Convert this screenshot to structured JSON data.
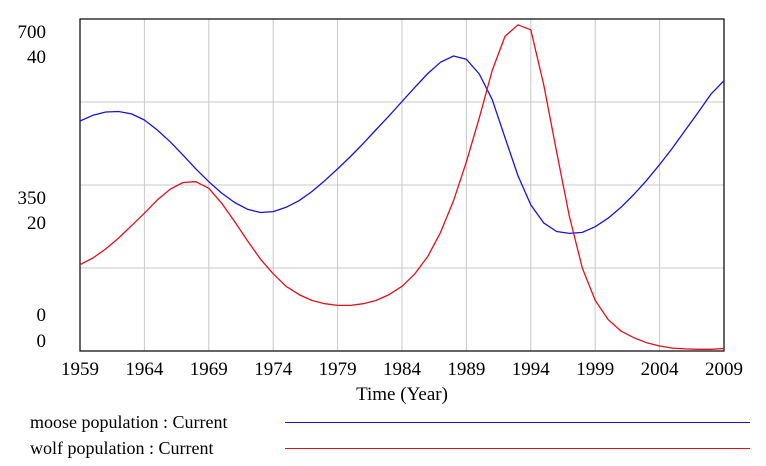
{
  "chart_data": {
    "type": "line",
    "xlabel": "Time (Year)",
    "xlim": [
      1959,
      2009
    ],
    "xticks": [
      "1959",
      "1964",
      "1969",
      "1974",
      "1979",
      "1984",
      "1989",
      "1994",
      "1999",
      "2004",
      "2009"
    ],
    "grid": true,
    "left_axis_outer_ticks": [
      "700",
      "350",
      "0"
    ],
    "left_axis_inner_ticks": [
      "40",
      "20",
      "0"
    ],
    "legend_position": "bottom",
    "series": [
      {
        "name": "moose population : Current",
        "color": "#1a12d6",
        "axis_range": [
          0,
          700
        ],
        "x": [
          1959,
          1960,
          1961,
          1962,
          1963,
          1964,
          1965,
          1966,
          1967,
          1968,
          1969,
          1970,
          1971,
          1972,
          1973,
          1974,
          1975,
          1976,
          1977,
          1978,
          1979,
          1980,
          1981,
          1982,
          1983,
          1984,
          1985,
          1986,
          1987,
          1988,
          1989,
          1990,
          1991,
          1992,
          1993,
          1994,
          1995,
          1996,
          1997,
          1998,
          1999,
          2000,
          2001,
          2002,
          2003,
          2004,
          2005,
          2006,
          2007,
          2008,
          2009
        ],
        "values": [
          485,
          497,
          504,
          505,
          500,
          487,
          466,
          441,
          413,
          384,
          357,
          333,
          313,
          299,
          292,
          294,
          303,
          317,
          336,
          359,
          384,
          410,
          438,
          467,
          496,
          526,
          556,
          585,
          609,
          622,
          615,
          584,
          530,
          450,
          370,
          308,
          270,
          252,
          248,
          250,
          262,
          280,
          303,
          330,
          360,
          393,
          428,
          466,
          503,
          542,
          570
        ]
      },
      {
        "name": "wolf population : Current",
        "color": "#e0101c",
        "axis_range": [
          0,
          40
        ],
        "x": [
          1959,
          1960,
          1961,
          1962,
          1963,
          1964,
          1965,
          1966,
          1967,
          1968,
          1969,
          1970,
          1971,
          1972,
          1973,
          1974,
          1975,
          1976,
          1977,
          1978,
          1979,
          1980,
          1981,
          1982,
          1983,
          1984,
          1985,
          1986,
          1987,
          1988,
          1989,
          1990,
          1991,
          1992,
          1993,
          1994,
          1995,
          1996,
          1997,
          1998,
          1999,
          2000,
          2001,
          2002,
          2003,
          2004,
          2005,
          2006,
          2007,
          2008,
          2009
        ],
        "values": [
          10.4,
          11.2,
          12.3,
          13.6,
          15.1,
          16.6,
          18.2,
          19.5,
          20.3,
          20.4,
          19.6,
          17.8,
          15.6,
          13.3,
          11.1,
          9.3,
          7.8,
          6.8,
          6.1,
          5.7,
          5.5,
          5.5,
          5.7,
          6.1,
          6.8,
          7.8,
          9.3,
          11.4,
          14.3,
          18.1,
          22.8,
          28.1,
          33.8,
          37.9,
          39.3,
          38.7,
          32.1,
          24.0,
          16.2,
          10.0,
          6.1,
          3.8,
          2.4,
          1.6,
          1.0,
          0.6,
          0.35,
          0.25,
          0.2,
          0.2,
          0.3
        ]
      }
    ]
  }
}
